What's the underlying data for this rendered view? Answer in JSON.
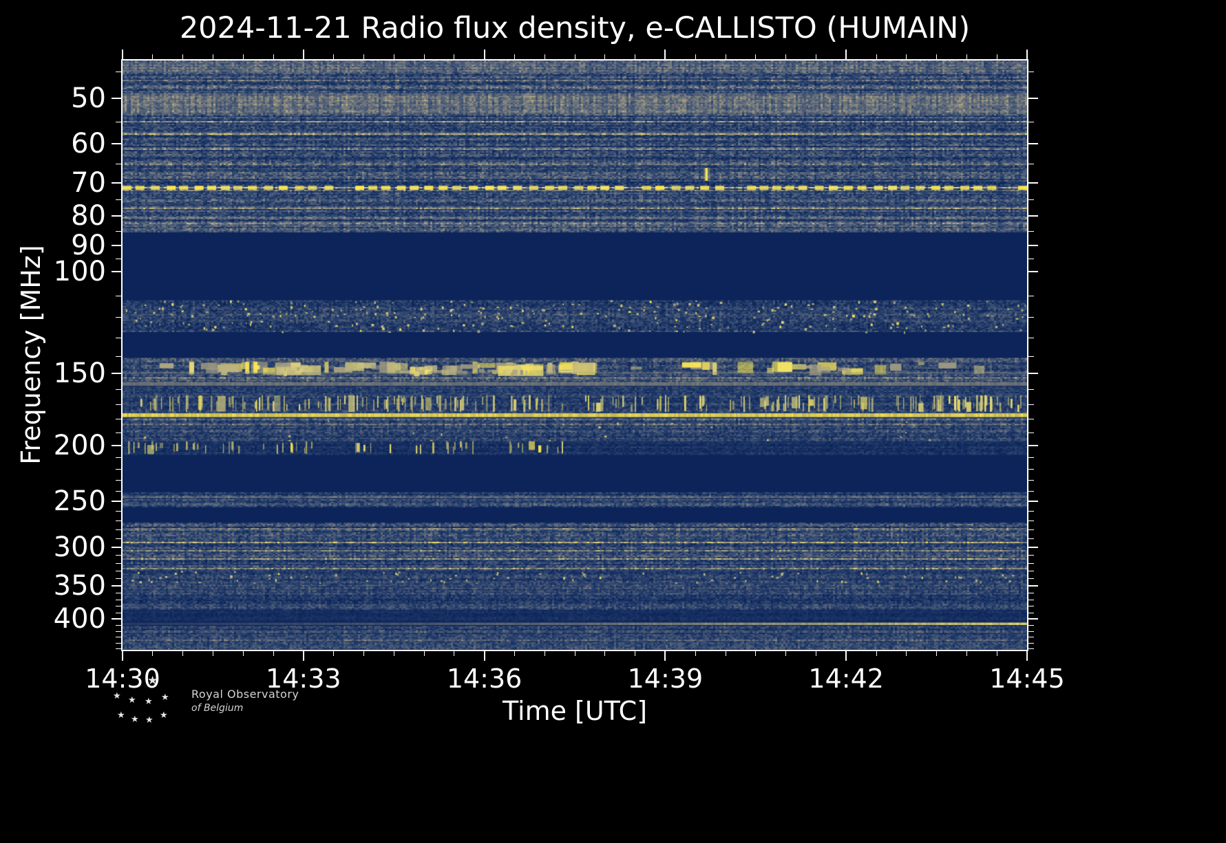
{
  "chart": {
    "title": "2024-11-21 Radio flux density, e-CALLISTO (HUMAIN)",
    "xlabel": "Time [UTC]",
    "ylabel": "Frequency [MHz]"
  },
  "logo": {
    "name": "Royal Observatory of Belgium",
    "line1": "Royal Observatory",
    "line2": "of Belgium"
  },
  "chart_data": {
    "type": "heatmap",
    "title": "2024-11-21 Radio flux density, e-CALLISTO (HUMAIN)",
    "date": "2024-11-21",
    "instrument": "e-CALLISTO",
    "station": "HUMAIN",
    "xlabel": "Time [UTC]",
    "ylabel": "Frequency [MHz]",
    "x_start_utc": "14:30",
    "x_end_utc": "14:45",
    "x_tick_labels": [
      "14:30",
      "14:33",
      "14:36",
      "14:39",
      "14:42",
      "14:45"
    ],
    "x_minor_tick_seconds": 30,
    "y_scale": "log",
    "y_range_mhz": [
      43,
      452
    ],
    "y_tick_labels_mhz": [
      50,
      60,
      70,
      80,
      90,
      100,
      150,
      200,
      250,
      300,
      350,
      400
    ],
    "y_minor_ticks_mhz": [
      45,
      55,
      65,
      75,
      85,
      95,
      110,
      120,
      130,
      140,
      160,
      170,
      180,
      190,
      210,
      220,
      230,
      240,
      260,
      270,
      280,
      290,
      310,
      320,
      330,
      340,
      360,
      370,
      380,
      390,
      410,
      420,
      430,
      440,
      450
    ],
    "colormap": {
      "background": "#0c2459",
      "stops": [
        [
          0,
          "#0c2459"
        ],
        [
          0.25,
          "#27416e"
        ],
        [
          0.5,
          "#5f6a7c"
        ],
        [
          0.75,
          "#aaa284"
        ],
        [
          0.92,
          "#e5d87a"
        ],
        [
          1,
          "#ffea4d"
        ]
      ]
    },
    "bands": [
      {
        "f": [
          43,
          85
        ],
        "style": "noise",
        "base": 0.3,
        "rowVar": 0.14,
        "colVar": 0.38,
        "striate": 0.1,
        "desc": "broadband noise 43-85 MHz"
      },
      {
        "f": [
          43,
          45
        ],
        "style": "noise",
        "base": 0.46,
        "rowVar": 0.06,
        "colVar": 0.3,
        "desc": "brighter rows at top edge"
      },
      {
        "f": [
          49,
          53
        ],
        "style": "noise",
        "base": 0.55,
        "rowVar": 0.08,
        "colVar": 0.3,
        "desc": "bright grey band 49-53 MHz"
      },
      {
        "f": [
          57.2,
          57.5
        ],
        "style": "hline",
        "v": 0.55,
        "alpha": 0.4,
        "desc": "faint line ~57.3 MHz"
      },
      {
        "f": [
          70.9,
          72.1
        ],
        "style": "hline-dashed",
        "dash": 13,
        "gap": 8,
        "desc": "strong dashed RFI line ~71.5 MHz"
      },
      {
        "f": [
          76.6,
          76.9
        ],
        "style": "hline",
        "v": 0.5,
        "alpha": 0.32,
        "desc": "faint line ~76.7 MHz"
      },
      {
        "f": [
          80.5,
          80.8
        ],
        "style": "hline",
        "v": 0.5,
        "alpha": 0.32,
        "desc": "faint line ~80.6 MHz"
      },
      {
        "f": [
          85,
          111.5
        ],
        "style": "blank",
        "desc": "filtered FM broadcast band"
      },
      {
        "f": [
          112,
          127
        ],
        "style": "noise",
        "base": 0.28,
        "rowVar": 0.1,
        "colVar": 0.4,
        "speckle": 0.35,
        "desc": "airband with white/yellow speckles"
      },
      {
        "f": [
          127,
          141
        ],
        "style": "blank",
        "desc": "quiet gap"
      },
      {
        "f": [
          141,
          155
        ],
        "style": "noise",
        "base": 0.33,
        "rowVar": 0.12,
        "colVar": 0.4,
        "striate": 0.12,
        "desc": "noisy band 141-155 MHz"
      },
      {
        "f": [
          143,
          151
        ],
        "style": "blotches",
        "count": 85,
        "desc": "grey/yellow burst blotches 143-151 MHz"
      },
      {
        "f": [
          149.2,
          150.3
        ],
        "style": "hline",
        "v": 0.62,
        "alpha": 0.45,
        "desc": "pale line ~149.7 MHz"
      },
      {
        "f": [
          155.3,
          157.6
        ],
        "style": "hline",
        "v": 0.68,
        "alpha": 0.75,
        "desc": "continuous pale band ~156 MHz"
      },
      {
        "f": [
          158,
          163.5
        ],
        "style": "noise",
        "base": 0.2,
        "rowVar": 0.08,
        "colVar": 0.3,
        "desc": "dim noise 158-163 MHz"
      },
      {
        "f": [
          163.5,
          175
        ],
        "style": "noise",
        "base": 0.24,
        "rowVar": 0.1,
        "colVar": 0.35,
        "desc": "noise floor 164-175 MHz"
      },
      {
        "f": [
          163.5,
          175
        ],
        "style": "vstreaks",
        "density": 0.3,
        "v": 0.92,
        "desc": "dense yellow vertical streaks 164-175 MHz"
      },
      {
        "f": [
          175.8,
          178.6
        ],
        "style": "hline",
        "v": 0.98,
        "alpha": 0.95,
        "desc": "brightest continuous RFI line ~177 MHz"
      },
      {
        "f": [
          179.5,
          196
        ],
        "style": "noise",
        "base": 0.3,
        "rowVar": 0.12,
        "colVar": 0.38,
        "striate": 0.1,
        "speckle": 0.04,
        "desc": "noise 180-196 MHz"
      },
      {
        "f": [
          196.5,
          207
        ],
        "style": "noise",
        "base": 0.14,
        "rowVar": 0.06,
        "colVar": 0.25,
        "desc": "dim band 197-207 MHz"
      },
      {
        "f": [
          196.5,
          207
        ],
        "style": "vstreaks",
        "density": 0.18,
        "v": 0.95,
        "x_end": 0.49,
        "desc": "yellow bursts 197-207 MHz ending ~14:37.3"
      },
      {
        "f": [
          208,
          240
        ],
        "style": "blank",
        "desc": "quiet gap"
      },
      {
        "f": [
          241,
          255
        ],
        "style": "noise",
        "base": 0.3,
        "rowVar": 0.1,
        "colVar": 0.35,
        "striate": 0.12,
        "desc": "grey noise band 241-255 MHz"
      },
      {
        "f": [
          245.3,
          246.8
        ],
        "style": "hline",
        "v": 0.55,
        "alpha": 0.4,
        "desc": "pale line ~246 MHz"
      },
      {
        "f": [
          255,
          271
        ],
        "style": "blank",
        "desc": "quiet gap"
      },
      {
        "f": [
          272,
          330
        ],
        "style": "noise",
        "base": 0.3,
        "rowVar": 0.13,
        "colVar": 0.38,
        "striate": 0.14,
        "desc": "striated mottled noise 272-330 MHz"
      },
      {
        "f": [
          330,
          347
        ],
        "style": "noise",
        "base": 0.26,
        "rowVar": 0.1,
        "colVar": 0.35,
        "speckle": 0.3,
        "desc": "band with yellow speckles ~335-345 MHz"
      },
      {
        "f": [
          347,
          385
        ],
        "style": "noise",
        "base": 0.28,
        "rowVar": 0.11,
        "colVar": 0.36,
        "striate": 0.1,
        "desc": "noise 347-385 MHz"
      },
      {
        "f": [
          386,
          403
        ],
        "style": "noise",
        "base": 0.1,
        "rowVar": 0.04,
        "colVar": 0.18,
        "desc": "very faint region 386-403 MHz"
      },
      {
        "f": [
          405.5,
          409.5
        ],
        "style": "hline-grad",
        "v0": 0.45,
        "v1": 0.95,
        "desc": "line ~408 MHz brighter toward right"
      },
      {
        "f": [
          411,
          450
        ],
        "style": "noise",
        "base": 0.3,
        "rowVar": 0.12,
        "colVar": 0.36,
        "striate": 0.1,
        "desc": "noise 411-450 MHz"
      }
    ],
    "events": [
      {
        "x_frac": 0.645,
        "f": [
          66,
          69.5
        ],
        "style": "vburst",
        "desc": "narrowband spike ~14:39.7 at 66-70 MHz"
      },
      {
        "x_frac": 0.185,
        "w_frac": 0.03,
        "f": [
          146,
          151
        ],
        "style": "blob",
        "v": 0.85,
        "desc": "burst cluster ~14:32.8"
      },
      {
        "x_frac": 0.33,
        "w_frac": 0.025,
        "f": [
          146,
          150.5
        ],
        "style": "blob",
        "v": 0.9,
        "desc": "burst cluster ~14:35.0"
      },
      {
        "x_frac": 0.44,
        "w_frac": 0.05,
        "f": [
          145.5,
          151.5
        ],
        "style": "blob",
        "v": 0.96,
        "desc": "bright burst cluster ~14:36.6"
      }
    ]
  }
}
